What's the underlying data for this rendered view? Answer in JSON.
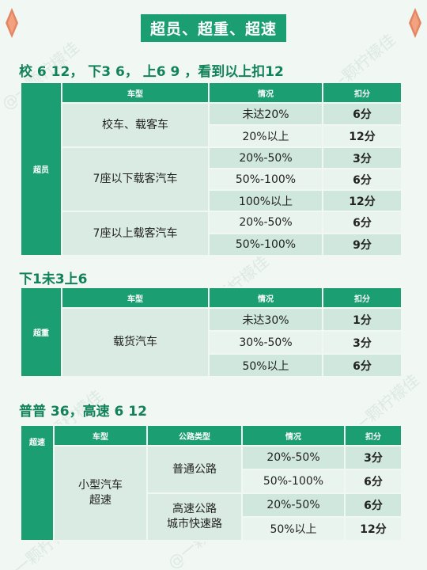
{
  "title": "超员、超重、超速",
  "colors": {
    "accent": "#1a9e72",
    "heading": "#12825c",
    "diamond": "#e0724a"
  },
  "watermark": "@一颗柠檬佳",
  "section1": {
    "heading": "校 6 12， 下3 6， 上6 9 ，看到以上扣12",
    "side_label": "超员",
    "headers": [
      "车型",
      "情况",
      "扣分"
    ],
    "groups": [
      {
        "vehicle": "校车、载客车",
        "rows": [
          {
            "condition": "未达20%",
            "points": "6分"
          },
          {
            "condition": "20%以上",
            "points": "12分"
          }
        ]
      },
      {
        "vehicle": "7座以下载客汽车",
        "rows": [
          {
            "condition": "20%-50%",
            "points": "3分"
          },
          {
            "condition": "50%-100%",
            "points": "6分"
          },
          {
            "condition": "100%以上",
            "points": "12分"
          }
        ]
      },
      {
        "vehicle": "7座以上载客汽车",
        "rows": [
          {
            "condition": "20%-50%",
            "points": "6分"
          },
          {
            "condition": "50%-100%",
            "points": "9分"
          }
        ]
      }
    ]
  },
  "section2": {
    "heading": "下1未3上6",
    "side_label": "超重",
    "headers": [
      "车型",
      "情况",
      "扣分"
    ],
    "vehicle": "载货汽车",
    "rows": [
      {
        "condition": "未达30%",
        "points": "1分"
      },
      {
        "condition": "30%-50%",
        "points": "3分"
      },
      {
        "condition": "50%以上",
        "points": "6分"
      }
    ]
  },
  "section3": {
    "heading": "普普 36，高速 6 12",
    "side_label": "超速",
    "headers": [
      "车型",
      "公路类型",
      "情况",
      "扣分"
    ],
    "vehicle": "小型汽车\n超速",
    "roads": [
      {
        "road": "普通公路",
        "rows": [
          {
            "condition": "20%-50%",
            "points": "3分"
          },
          {
            "condition": "50%-100%",
            "points": "6分"
          }
        ]
      },
      {
        "road": "高速公路\n城市快速路",
        "rows": [
          {
            "condition": "20%-50%",
            "points": "6分"
          },
          {
            "condition": "50%以上",
            "points": "12分"
          }
        ]
      }
    ]
  }
}
